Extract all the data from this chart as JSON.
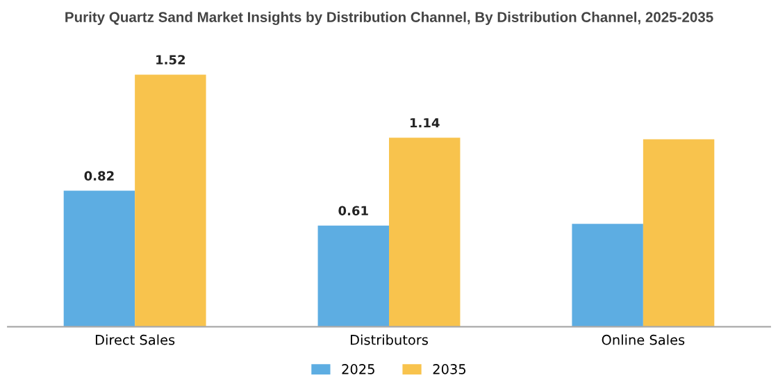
{
  "chart_data": {
    "type": "bar",
    "title": "Purity Quartz Sand Market Insights by Distribution Channel, By Distribution Channel, 2025-2035",
    "categories": [
      "Direct Sales",
      "Distributors",
      "Online Sales"
    ],
    "series": [
      {
        "name": "2025",
        "color": "#5dade2",
        "values": [
          0.82,
          0.61,
          0.62
        ],
        "value_labels": [
          "0.82",
          "0.61",
          null
        ]
      },
      {
        "name": "2035",
        "color": "#f8c34d",
        "values": [
          1.52,
          1.14,
          1.13
        ],
        "value_labels": [
          "1.52",
          "1.14",
          null
        ]
      }
    ],
    "legend": "bottom",
    "grid": false
  }
}
